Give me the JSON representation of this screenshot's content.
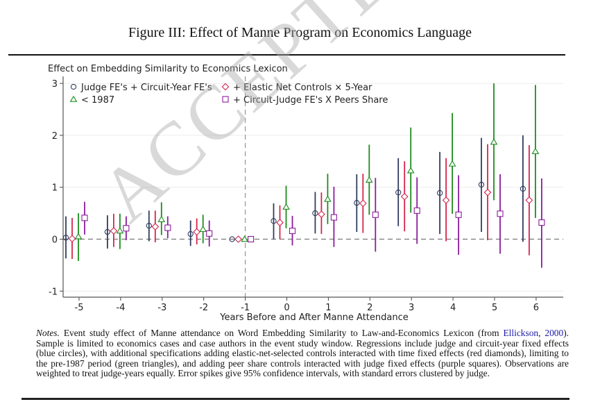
{
  "figure_title": "Figure III: Effect of Manne Program on Economics Language",
  "watermark": "ACCEPTED MANUSCRIPT",
  "notes": {
    "label": "Notes.",
    "text_before_cite": " Event study effect of Manne attendance on Word Embedding Similarity to Law-and-Economics Lexicon (from ",
    "cite_author": "Ellickson",
    "cite_sep": ", ",
    "cite_year": "2000",
    "text_after_cite": "). Sample is limited to economics cases and case authors in the event study window. Regressions include judge and circuit-year fixed effects (blue circles), with additional specifications adding elastic-net-selected controls interacted with time fixed effects (red diamonds), limiting to the pre-1987 period (green triangles), and adding peer share controls interacted with judge fixed effects (purple squares). Observations are weighted to treat judge-years equally. Error spikes give 95% confidence intervals, with standard errors clustered by judge."
  },
  "chart_data": {
    "type": "scatter",
    "subtype": "event-study coefficient plot with 95% CI error spikes",
    "title": "",
    "ylabel": "Effect on Embedding Similarity to Economics Lexicon",
    "xlabel": "Years Before and After Manne Attendance",
    "x": [
      -5,
      -4,
      -3,
      -2,
      -1,
      0,
      1,
      2,
      3,
      4,
      5,
      6
    ],
    "xticks": [
      "-5",
      "-4",
      "-3",
      "-2",
      "-1",
      "0",
      "1",
      "2",
      "3",
      "4",
      "5",
      "6"
    ],
    "yticks": [
      "-1",
      "0",
      "1",
      "2",
      "3"
    ],
    "ylim": [
      -1.12,
      3.05
    ],
    "xlim": [
      -5.35,
      6.65
    ],
    "grid": "horizontal",
    "reference_lines": [
      {
        "axis": "y",
        "value": 0,
        "style": "dashed"
      },
      {
        "axis": "x",
        "value": -1,
        "style": "dashed"
      }
    ],
    "legend": {
      "placement": "top-left",
      "columns": 2
    },
    "series": [
      {
        "name": "Judge FE's + Circuit-Year FE's",
        "marker": "circle",
        "color": "#2f3d5e",
        "values": [
          0.03,
          0.14,
          0.26,
          0.1,
          0.0,
          0.35,
          0.5,
          0.7,
          0.9,
          0.89,
          1.05,
          0.97
        ],
        "ci_low": [
          -0.37,
          -0.18,
          -0.04,
          -0.13,
          null,
          0.0,
          0.11,
          0.14,
          0.25,
          0.1,
          0.14,
          -0.05
        ],
        "ci_high": [
          0.44,
          0.46,
          0.55,
          0.36,
          null,
          0.69,
          0.91,
          1.25,
          1.56,
          1.68,
          1.95,
          2.0
        ]
      },
      {
        "name": "+ Elastic Net Controls × 5-Year",
        "marker": "diamond",
        "color": "#d4254d",
        "values": [
          0.01,
          0.16,
          0.24,
          0.14,
          0.0,
          0.32,
          0.48,
          0.69,
          0.82,
          0.75,
          0.9,
          0.75
        ],
        "ci_low": [
          -0.38,
          -0.15,
          -0.06,
          -0.1,
          null,
          0.0,
          0.1,
          0.12,
          0.15,
          -0.04,
          -0.02,
          -0.31
        ],
        "ci_high": [
          0.41,
          0.49,
          0.55,
          0.4,
          null,
          0.65,
          0.9,
          1.26,
          1.5,
          1.56,
          1.83,
          1.81
        ]
      },
      {
        "name": "< 1987",
        "marker": "triangle",
        "color": "#1c8c1c",
        "values": [
          0.05,
          0.16,
          0.38,
          0.19,
          0.0,
          0.62,
          0.77,
          1.14,
          1.32,
          1.45,
          1.87,
          1.69
        ],
        "ci_low": [
          -0.42,
          -0.19,
          0.08,
          -0.08,
          null,
          0.21,
          0.29,
          0.47,
          0.51,
          0.49,
          0.75,
          0.41
        ],
        "ci_high": [
          0.5,
          0.49,
          0.71,
          0.47,
          null,
          1.03,
          1.26,
          1.82,
          2.15,
          2.43,
          3.0,
          2.97
        ]
      },
      {
        "name": "+ Circuit-Judge FE's X Peers Share",
        "marker": "square",
        "color": "#8b1c9c",
        "values": [
          0.41,
          0.21,
          0.22,
          0.11,
          0.0,
          0.16,
          0.42,
          0.47,
          0.55,
          0.47,
          0.49,
          0.32
        ],
        "ci_low": [
          0.09,
          -0.02,
          0.02,
          -0.14,
          null,
          -0.12,
          -0.15,
          -0.24,
          -0.09,
          -0.3,
          -0.28,
          -0.55
        ],
        "ci_high": [
          0.72,
          0.44,
          0.44,
          0.36,
          null,
          0.45,
          1.01,
          1.18,
          1.19,
          1.23,
          1.25,
          1.17
        ]
      }
    ]
  }
}
